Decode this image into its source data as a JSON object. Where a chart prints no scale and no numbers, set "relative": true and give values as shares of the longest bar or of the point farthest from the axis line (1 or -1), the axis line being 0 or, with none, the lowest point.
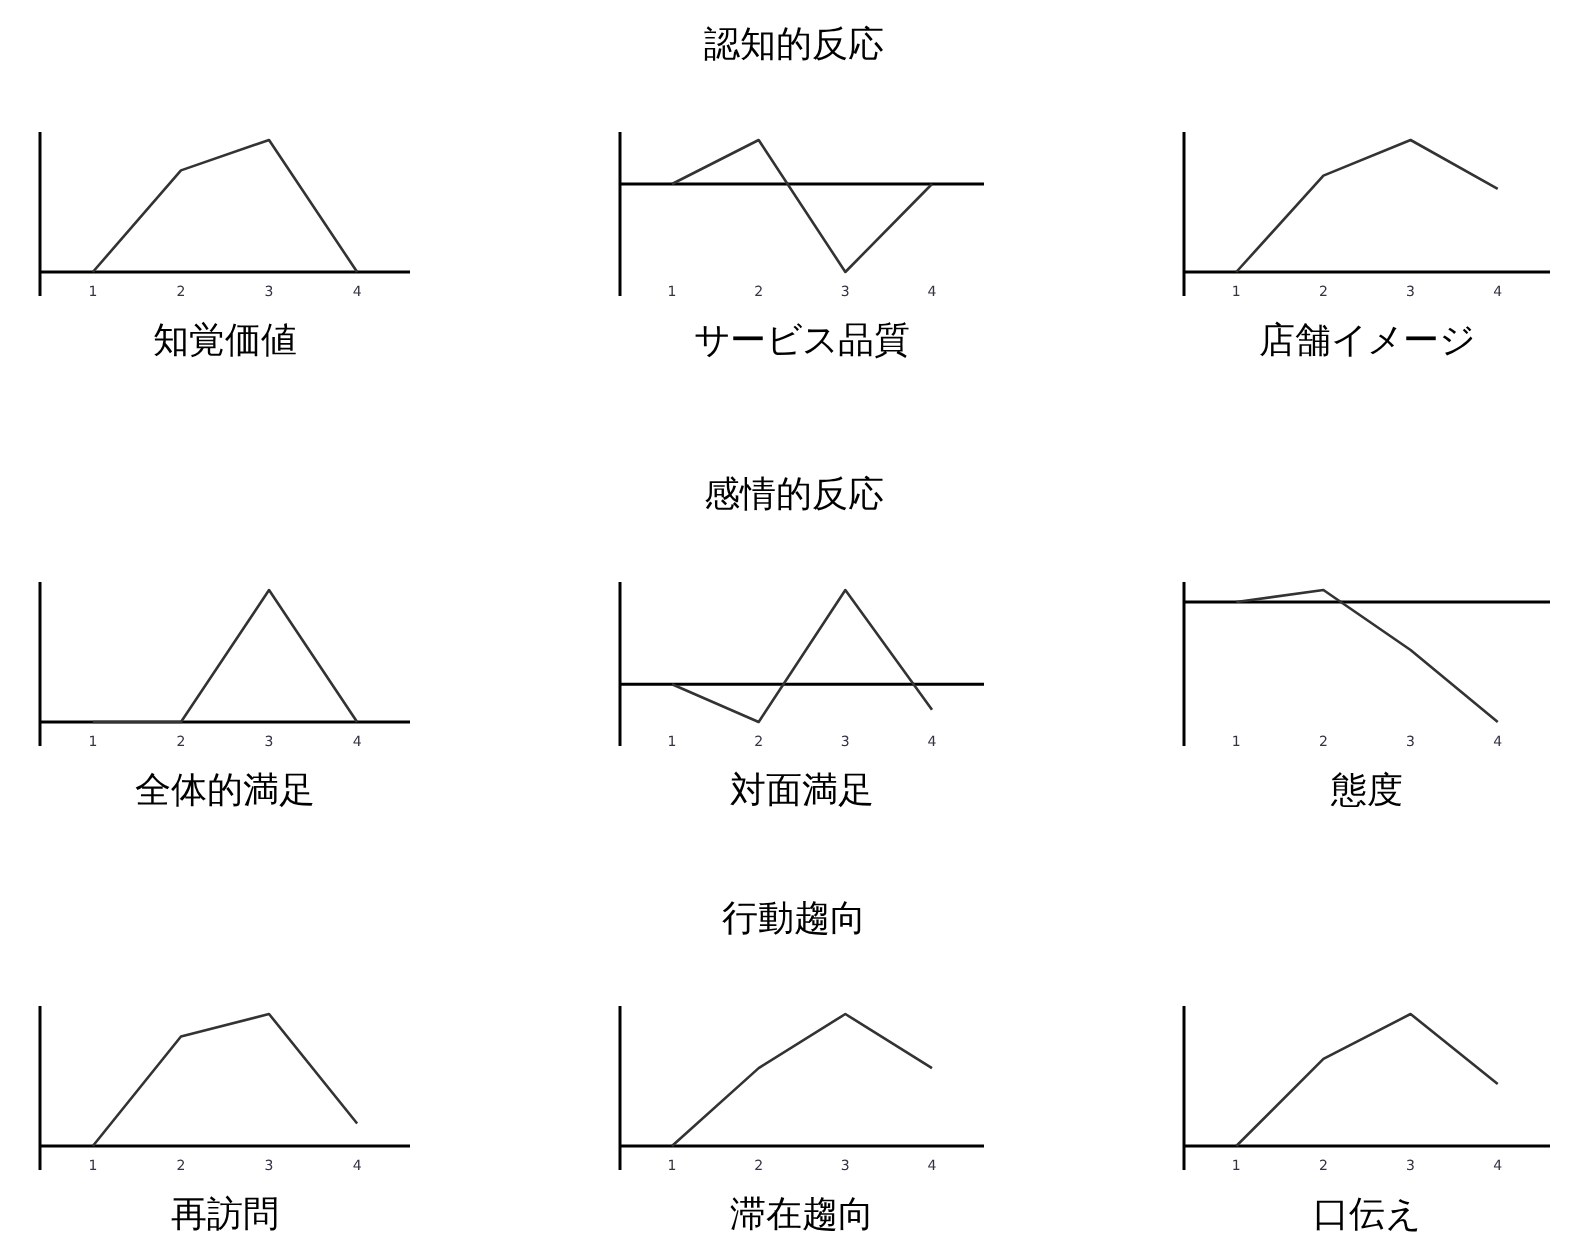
{
  "chart_data": [
    {
      "type": "other",
      "title": "認知的反応"
    },
    {
      "type": "line",
      "title": "知覚価値",
      "categories": [
        "1",
        "2",
        "3",
        "4"
      ],
      "relative": true,
      "series": [
        {
          "color": "#333333",
          "values": [
            0,
            0.77,
            1,
            0
          ]
        }
      ]
    },
    {
      "type": "line",
      "title": "サービス品質",
      "categories": [
        "1",
        "2",
        "3",
        "4"
      ],
      "relative": true,
      "series": [
        {
          "color": "#333333",
          "values": [
            0,
            0.5,
            -1,
            0
          ]
        }
      ]
    },
    {
      "type": "line",
      "title": "店舗イメージ",
      "categories": [
        "1",
        "2",
        "3",
        "4"
      ],
      "relative": true,
      "series": [
        {
          "color": "#333333",
          "values": [
            0,
            0.73,
            1,
            0.63
          ]
        }
      ]
    },
    {
      "type": "other",
      "title": "感情的反応"
    },
    {
      "type": "line",
      "title": "全体的満足",
      "categories": [
        "1",
        "2",
        "3",
        "4"
      ],
      "relative": true,
      "series": [
        {
          "color": "#333333",
          "values": [
            0,
            0,
            1,
            0
          ]
        }
      ]
    },
    {
      "type": "line",
      "title": "対面満足",
      "categories": [
        "1",
        "2",
        "3",
        "4"
      ],
      "relative": true,
      "series": [
        {
          "color": "#333333",
          "values": [
            0,
            -0.4,
            1,
            -0.27
          ]
        }
      ]
    },
    {
      "type": "line",
      "title": "態度",
      "categories": [
        "1",
        "2",
        "3",
        "4"
      ],
      "relative": true,
      "series": [
        {
          "color": "#333333",
          "values": [
            0,
            0.1,
            -0.4,
            -1
          ]
        }
      ]
    },
    {
      "type": "other",
      "title": "行動趨向"
    },
    {
      "type": "line",
      "title": "再訪問",
      "categories": [
        "1",
        "2",
        "3",
        "4"
      ],
      "relative": true,
      "series": [
        {
          "color": "#333333",
          "values": [
            0,
            0.83,
            1,
            0.17
          ]
        }
      ]
    },
    {
      "type": "line",
      "title": "滞在趨向",
      "categories": [
        "1",
        "2",
        "3",
        "4"
      ],
      "relative": true,
      "series": [
        {
          "color": "#333333",
          "values": [
            0,
            0.59,
            1,
            0.59
          ]
        }
      ]
    },
    {
      "type": "line",
      "title": "口伝え",
      "categories": [
        "1",
        "2",
        "3",
        "4"
      ],
      "relative": true,
      "series": [
        {
          "color": "#333333",
          "values": [
            0,
            0.66,
            1,
            0.47
          ]
        }
      ]
    }
  ]
}
